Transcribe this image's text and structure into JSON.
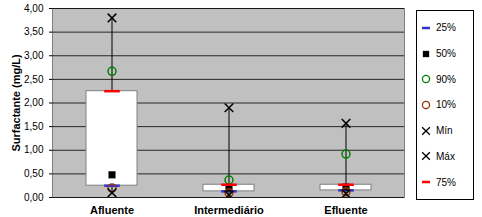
{
  "chart_data": {
    "type": "box",
    "ylabel": "Surfactante (mg/L)",
    "categories": [
      "Afluente",
      "Intermediário",
      "Efluente"
    ],
    "ylim": [
      0,
      4
    ],
    "yticks": [
      {
        "value": 0,
        "label": "0,00"
      },
      {
        "value": 0.5,
        "label": "0,50"
      },
      {
        "value": 1,
        "label": "1,00"
      },
      {
        "value": 1.5,
        "label": "1,50"
      },
      {
        "value": 2,
        "label": "2,00"
      },
      {
        "value": 2.5,
        "label": "2,50"
      },
      {
        "value": 3,
        "label": "3,00"
      },
      {
        "value": 3.5,
        "label": "3,50"
      },
      {
        "value": 4,
        "label": "4,00"
      }
    ],
    "grid": true,
    "legend": "right",
    "series": [
      {
        "name": "25%",
        "color": "#3333cc",
        "marker": "dash",
        "values": [
          0.25,
          0.13,
          0.15
        ]
      },
      {
        "name": "50%",
        "color": "#000000",
        "marker": "square",
        "values": [
          0.48,
          0.2,
          0.22
        ]
      },
      {
        "name": "90%",
        "color": "#008000",
        "marker": "circle",
        "values": [
          2.67,
          0.37,
          0.92
        ]
      },
      {
        "name": "10%",
        "color": "#993300",
        "marker": "circle",
        "values": [
          0.2,
          0.1,
          0.12
        ]
      },
      {
        "name": "Mín",
        "color": "#000000",
        "marker": "x",
        "values": [
          0.1,
          0.05,
          0.08
        ]
      },
      {
        "name": "Máx",
        "color": "#000000",
        "marker": "x",
        "values": [
          3.8,
          1.9,
          1.57
        ]
      },
      {
        "name": "75%",
        "color": "#ff0000",
        "marker": "dash",
        "values": [
          2.25,
          0.27,
          0.27
        ]
      }
    ]
  }
}
